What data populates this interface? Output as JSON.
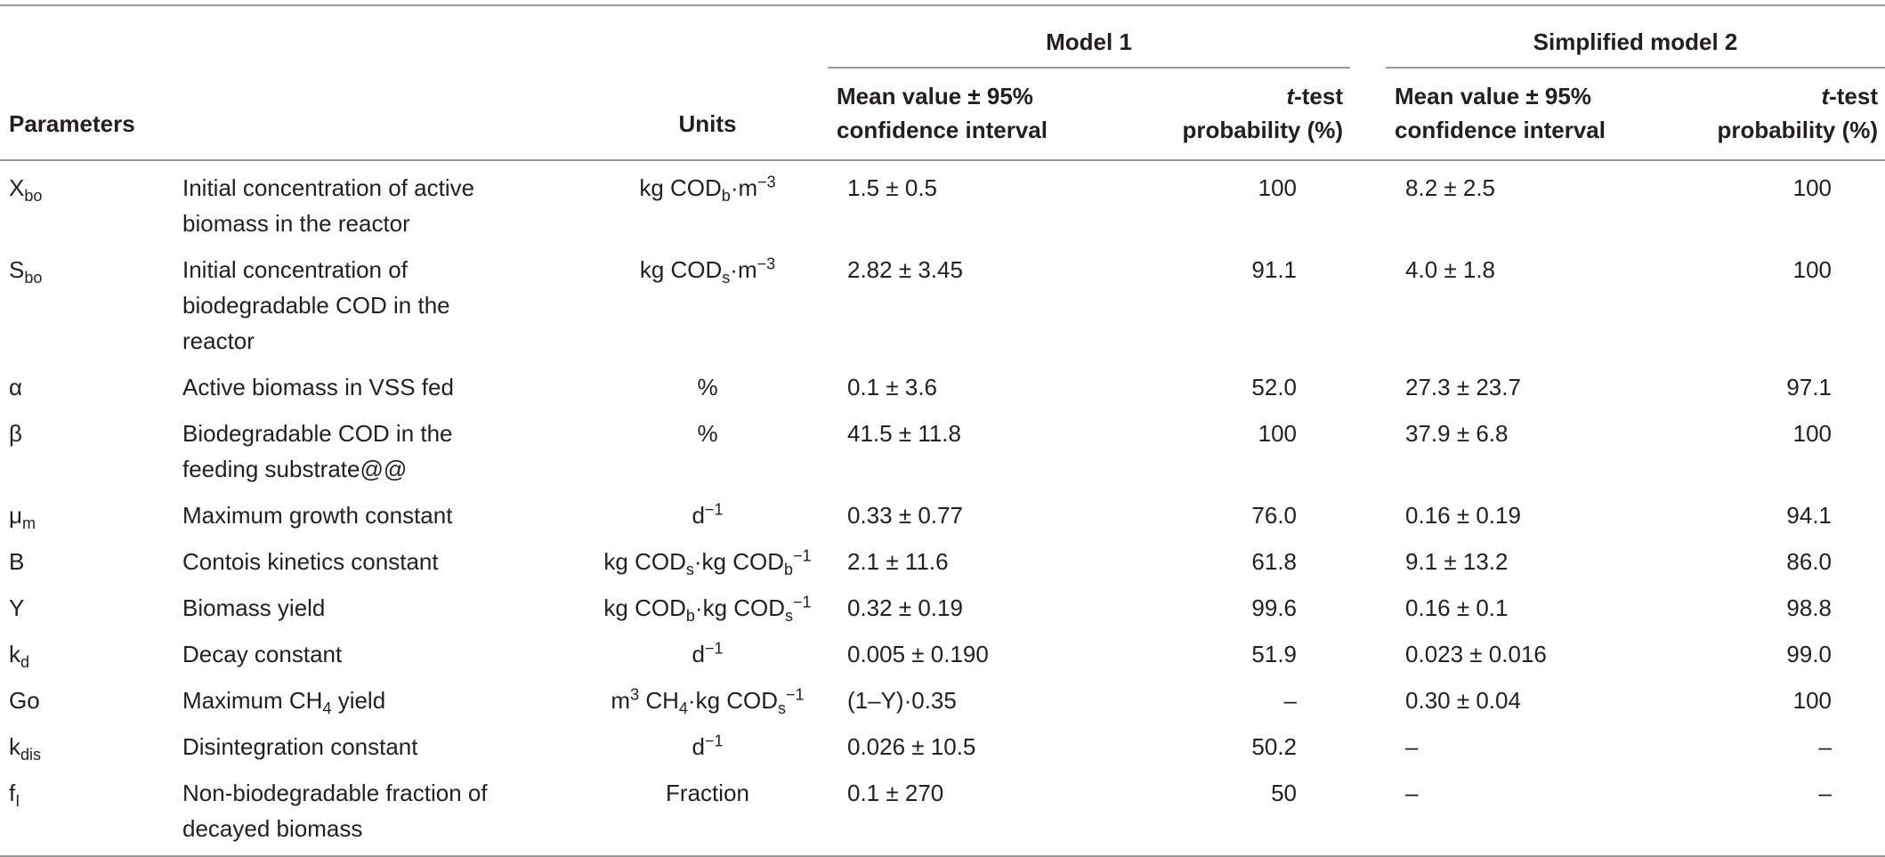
{
  "header": {
    "model1": "Model 1",
    "model2": "Simplified model 2",
    "parameters": "Parameters",
    "units": "Units",
    "mean_line1": "Mean value ± 95%",
    "mean_line2": "confidence interval",
    "ttest_t": "t",
    "ttest_rest": "-test",
    "ttest_line2": "probability (%)"
  },
  "rows": [
    {
      "sym": "X",
      "sym_sub": "bo",
      "desc": [
        "Initial concentration of active",
        "biomass in the reactor"
      ],
      "unit_html": "kg COD<sub>b</sub>·m<sup>−3</sup>",
      "m1_mean": "1.5 ± 0.5",
      "m1_t": "100",
      "m2_mean": "8.2 ± 2.5",
      "m2_t": "100"
    },
    {
      "sym": "S",
      "sym_sub": "bo",
      "desc": [
        "Initial concentration of",
        "biodegradable COD in the",
        "reactor"
      ],
      "unit_html": "kg COD<sub>s</sub>·m<sup>−3</sup>",
      "m1_mean": "2.82 ± 3.45",
      "m1_t": "91.1",
      "m2_mean": "4.0 ± 1.8",
      "m2_t": "100"
    },
    {
      "sym": "α",
      "sym_sub": "",
      "desc": [
        "Active biomass in VSS fed"
      ],
      "unit_html": "%",
      "m1_mean": "0.1 ± 3.6",
      "m1_t": "52.0",
      "m2_mean": "27.3 ± 23.7",
      "m2_t": "97.1"
    },
    {
      "sym": "β",
      "sym_sub": "",
      "desc": [
        "Biodegradable COD in the",
        "feeding substrate@@"
      ],
      "unit_html": "%",
      "m1_mean": "41.5 ± 11.8",
      "m1_t": "100",
      "m2_mean": "37.9 ± 6.8",
      "m2_t": "100"
    },
    {
      "sym": "μ",
      "sym_sub": "m",
      "desc": [
        "Maximum growth constant"
      ],
      "unit_html": "d<sup>−1</sup>",
      "m1_mean": "0.33 ± 0.77",
      "m1_t": "76.0",
      "m2_mean": "0.16 ± 0.19",
      "m2_t": "94.1"
    },
    {
      "sym": "B",
      "sym_sub": "",
      "desc": [
        "Contois kinetics constant"
      ],
      "unit_html": "kg COD<sub>s</sub>·kg COD<sub>b</sub><sup>−1</sup>",
      "m1_mean": "2.1 ± 11.6",
      "m1_t": "61.8",
      "m2_mean": "9.1 ± 13.2",
      "m2_t": "86.0"
    },
    {
      "sym": "Y",
      "sym_sub": "",
      "desc": [
        "Biomass yield"
      ],
      "unit_html": "kg COD<sub>b</sub>·kg COD<sub>s</sub><sup>−1</sup>",
      "m1_mean": "0.32 ± 0.19",
      "m1_t": "99.6",
      "m2_mean": "0.16 ± 0.1",
      "m2_t": "98.8"
    },
    {
      "sym": "k",
      "sym_sub": "d",
      "desc": [
        "Decay constant"
      ],
      "unit_html": "d<sup>−1</sup>",
      "m1_mean": "0.005 ± 0.190",
      "m1_t": "51.9",
      "m2_mean": "0.023 ± 0.016",
      "m2_t": "99.0"
    },
    {
      "sym": "Go",
      "sym_sub": "",
      "desc_html": "Maximum CH<sub>4</sub> yield",
      "desc": [
        "Maximum CH4 yield"
      ],
      "unit_html": "m<sup>3</sup> CH<sub>4</sub>·kg COD<sub>s</sub><sup>−1</sup>",
      "m1_mean": "(1–Y)·0.35",
      "m1_t": "–",
      "m2_mean": "0.30 ± 0.04",
      "m2_t": "100"
    },
    {
      "sym": "k",
      "sym_sub": "dis",
      "desc": [
        "Disintegration constant"
      ],
      "unit_html": "d<sup>−1</sup>",
      "m1_mean": "0.026 ± 10.5",
      "m1_t": "50.2",
      "m2_mean": "–",
      "m2_t": "–"
    },
    {
      "sym": "f",
      "sym_sub": "I",
      "desc": [
        "Non-biodegradable fraction of",
        "decayed biomass"
      ],
      "unit_html": "Fraction",
      "m1_mean": "0.1 ± 270",
      "m1_t": "50",
      "m2_mean": "–",
      "m2_t": "–"
    }
  ]
}
